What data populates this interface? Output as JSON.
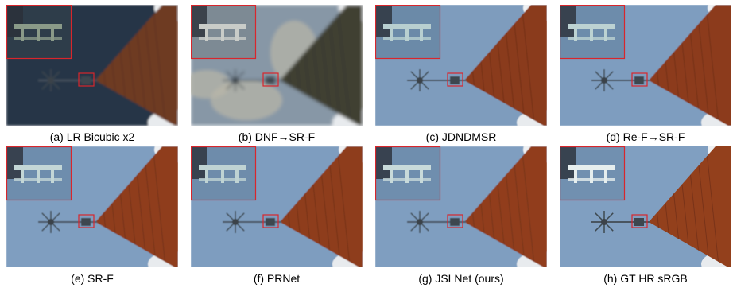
{
  "figure": {
    "panels": [
      {
        "caption": "(a) LR Bicubic x2"
      },
      {
        "caption": "(b) DNF→SR-F"
      },
      {
        "caption": "(c) JDNDMSR"
      },
      {
        "caption": "(d) Re-F→SR-F"
      },
      {
        "caption": "(e) SR-F"
      },
      {
        "caption": "(f) PRNet"
      },
      {
        "caption": "(g) JSLNet (ours)"
      },
      {
        "caption": "(h) GT HR sRGB"
      }
    ]
  }
}
